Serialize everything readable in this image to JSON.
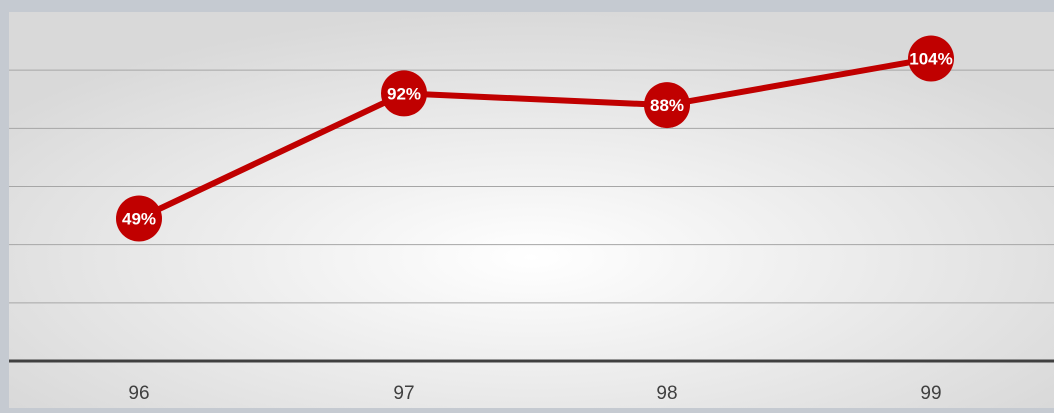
{
  "chart_data": {
    "type": "line",
    "categories": [
      "96",
      "97",
      "98",
      "99"
    ],
    "values": [
      49,
      92,
      88,
      104
    ],
    "data_labels": [
      "49%",
      "92%",
      "88%",
      "104%"
    ],
    "title": "",
    "xlabel": "",
    "ylabel": "",
    "ylim": [
      0,
      120
    ],
    "grid": true,
    "legend": "none",
    "colors": {
      "line": "#c00000",
      "marker": "#c00000",
      "label_text": "#ffffff",
      "axis_line": "#404040",
      "grid_line": "#a6a6a6",
      "tick_text": "#404040",
      "frame": "#c5cad1",
      "plot_center": "#ffffff",
      "plot_edge": "#d9d9d9"
    }
  }
}
